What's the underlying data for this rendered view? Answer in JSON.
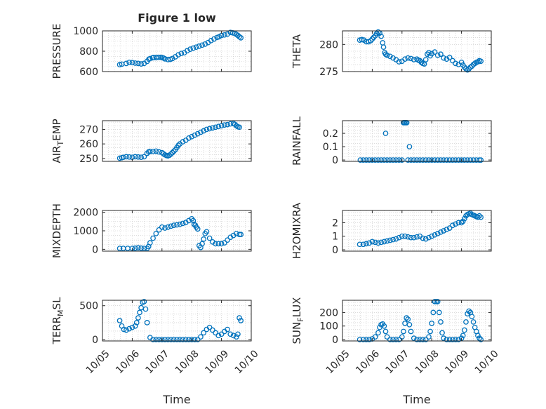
{
  "figure": {
    "title": "Figure 1 low",
    "x_label": "Time",
    "x_ticks": [
      "10/05",
      "10/06",
      "10/07",
      "10/08",
      "10/09",
      "10/10"
    ],
    "marker_color": "#0072BD",
    "axis_color": "#262626",
    "grid_color": "#c8c8c8"
  },
  "chart_data": [
    {
      "type": "scatter",
      "name": "pressure",
      "ylabel": "PRESSURE",
      "title": "Figure 1 low",
      "grid": true,
      "xlim": [
        0,
        5
      ],
      "ylim": [
        600,
        1000
      ],
      "yticks": [
        600,
        800,
        1000
      ],
      "ytick_labels": [
        "600",
        "800",
        "1000"
      ],
      "x": [
        0.58,
        0.65,
        0.8,
        0.9,
        1.0,
        1.1,
        1.2,
        1.3,
        1.4,
        1.5,
        1.56,
        1.6,
        1.68,
        1.72,
        1.8,
        1.88,
        1.95,
        2.0,
        2.05,
        2.1,
        2.2,
        2.28,
        2.35,
        2.45,
        2.55,
        2.65,
        2.75,
        2.85,
        2.95,
        3.05,
        3.15,
        3.25,
        3.35,
        3.45,
        3.55,
        3.65,
        3.75,
        3.85,
        3.92,
        4.0,
        4.1,
        4.2,
        4.3,
        4.38,
        4.45,
        4.5,
        4.55,
        4.6,
        4.65
      ],
      "y": [
        668,
        673,
        680,
        690,
        688,
        683,
        680,
        675,
        680,
        700,
        722,
        728,
        735,
        738,
        738,
        740,
        740,
        738,
        733,
        725,
        718,
        720,
        728,
        745,
        765,
        778,
        785,
        805,
        820,
        830,
        840,
        850,
        860,
        870,
        885,
        905,
        920,
        935,
        942,
        955,
        960,
        968,
        985,
        980,
        975,
        965,
        955,
        942,
        932
      ]
    },
    {
      "type": "scatter",
      "name": "theta",
      "ylabel": "THETA",
      "grid": true,
      "xlim": [
        0,
        5
      ],
      "ylim": [
        275,
        282.5
      ],
      "yticks": [
        275,
        280
      ],
      "ytick_labels": [
        "275",
        "280"
      ],
      "x": [
        0.58,
        0.65,
        0.72,
        0.8,
        0.88,
        0.95,
        1.0,
        1.05,
        1.1,
        1.15,
        1.2,
        1.25,
        1.3,
        1.35,
        1.38,
        1.42,
        1.45,
        1.5,
        1.6,
        1.7,
        1.8,
        1.9,
        2.0,
        2.1,
        2.2,
        2.3,
        2.4,
        2.5,
        2.55,
        2.6,
        2.65,
        2.7,
        2.75,
        2.8,
        2.85,
        2.9,
        2.95,
        3.0,
        3.1,
        3.2,
        3.3,
        3.4,
        3.5,
        3.6,
        3.7,
        3.8,
        3.9,
        4.0,
        4.05,
        4.1,
        4.15,
        4.2,
        4.25,
        4.3,
        4.35,
        4.4,
        4.45,
        4.5,
        4.55,
        4.6,
        4.65
      ],
      "y": [
        280.8,
        280.9,
        280.8,
        280.5,
        280.5,
        280.7,
        281.0,
        281.3,
        281.6,
        282.0,
        282.3,
        282.1,
        281.5,
        280.3,
        279.5,
        278.5,
        278.2,
        278.0,
        277.8,
        277.5,
        277.2,
        276.8,
        276.9,
        277.3,
        277.5,
        277.4,
        277.2,
        277.3,
        277.1,
        277.0,
        276.7,
        276.5,
        276.4,
        277.2,
        278.2,
        278.5,
        277.9,
        278.3,
        278.6,
        278.0,
        278.2,
        277.5,
        277.3,
        277.6,
        277.0,
        276.5,
        276.3,
        276.7,
        276.2,
        275.8,
        275.5,
        275.3,
        275.5,
        275.8,
        276.0,
        276.3,
        276.5,
        276.7,
        276.8,
        277.0,
        276.9
      ]
    },
    {
      "type": "scatter",
      "name": "air_temp",
      "ylabel": "AIR_TEMP",
      "ylabel_main": "AIR",
      "ylabel_sub": "T",
      "ylabel_rest": "EMP",
      "grid": true,
      "xlim": [
        0,
        5
      ],
      "ylim": [
        248,
        276
      ],
      "yticks": [
        250,
        260,
        270
      ],
      "ytick_labels": [
        "250",
        "260",
        "270"
      ],
      "x": [
        0.58,
        0.65,
        0.7,
        0.8,
        0.9,
        1.0,
        1.1,
        1.2,
        1.3,
        1.4,
        1.5,
        1.55,
        1.6,
        1.7,
        1.8,
        1.9,
        2.0,
        2.05,
        2.1,
        2.15,
        2.2,
        2.25,
        2.3,
        2.35,
        2.4,
        2.45,
        2.5,
        2.55,
        2.6,
        2.7,
        2.8,
        2.9,
        3.0,
        3.1,
        3.2,
        3.3,
        3.4,
        3.5,
        3.6,
        3.7,
        3.8,
        3.9,
        4.0,
        4.1,
        4.2,
        4.3,
        4.4,
        4.45,
        4.5,
        4.55,
        4.6
      ],
      "y": [
        250.2,
        250.5,
        250.8,
        251.2,
        251.0,
        250.8,
        251.2,
        251.0,
        250.8,
        251.2,
        253.5,
        254.5,
        254.8,
        254.8,
        255.0,
        254.5,
        254.0,
        253.2,
        252.5,
        252.0,
        251.8,
        252.2,
        253.0,
        254.0,
        255.0,
        256.0,
        257.5,
        259.0,
        260.0,
        261.5,
        262.5,
        264.0,
        265.0,
        266.0,
        267.0,
        268.0,
        269.0,
        270.0,
        270.5,
        271.0,
        271.5,
        272.0,
        272.5,
        273.0,
        273.3,
        273.8,
        274.0,
        273.5,
        272.5,
        271.8,
        271.5
      ]
    },
    {
      "type": "scatter",
      "name": "rainfall",
      "ylabel": "RAINFALL",
      "grid": true,
      "xlim": [
        0,
        5
      ],
      "ylim": [
        -0.01,
        0.295
      ],
      "yticks": [
        0,
        0.1,
        0.2
      ],
      "ytick_labels": [
        "0",
        "0.1",
        "0.2"
      ],
      "x": [
        0.6,
        0.7,
        0.8,
        0.9,
        1.0,
        1.1,
        1.2,
        1.3,
        1.4,
        1.45,
        1.5,
        1.6,
        1.7,
        1.8,
        1.9,
        2.0,
        2.05,
        2.08,
        2.12,
        2.16,
        2.2,
        2.25,
        2.3,
        2.4,
        2.5,
        2.6,
        2.7,
        2.8,
        2.9,
        3.0,
        3.1,
        3.2,
        3.3,
        3.4,
        3.5,
        3.6,
        3.7,
        3.8,
        3.9,
        4.0,
        4.1,
        4.2,
        4.3,
        4.4,
        4.5,
        4.6,
        4.65
      ],
      "y": [
        0,
        0,
        0,
        0,
        0,
        0,
        0,
        0,
        0,
        0.2,
        0,
        0,
        0,
        0,
        0,
        0,
        0.28,
        0.28,
        0.28,
        0.28,
        0,
        0.1,
        0,
        0,
        0,
        0,
        0,
        0,
        0,
        0,
        0,
        0,
        0,
        0,
        0,
        0,
        0,
        0,
        0,
        0,
        0,
        0,
        0,
        0,
        0,
        0,
        0
      ]
    },
    {
      "type": "scatter",
      "name": "mixdepth",
      "ylabel": "MIXDEPTH",
      "grid": true,
      "xlim": [
        0,
        5
      ],
      "ylim": [
        -100,
        2100
      ],
      "yticks": [
        0,
        1000,
        2000
      ],
      "ytick_labels": [
        "0",
        "1000",
        "2000"
      ],
      "x": [
        0.58,
        0.7,
        0.85,
        1.0,
        1.1,
        1.2,
        1.3,
        1.4,
        1.5,
        1.55,
        1.6,
        1.7,
        1.8,
        1.9,
        2.0,
        2.1,
        2.2,
        2.3,
        2.4,
        2.5,
        2.6,
        2.7,
        2.8,
        2.9,
        3.0,
        3.05,
        3.08,
        3.12,
        3.15,
        3.2,
        3.25,
        3.3,
        3.35,
        3.4,
        3.45,
        3.5,
        3.6,
        3.7,
        3.8,
        3.9,
        4.0,
        4.1,
        4.2,
        4.3,
        4.4,
        4.5,
        4.6,
        4.65
      ],
      "y": [
        50,
        50,
        50,
        50,
        60,
        80,
        60,
        50,
        50,
        150,
        350,
        600,
        850,
        1050,
        1200,
        1150,
        1200,
        1250,
        1300,
        1320,
        1350,
        1400,
        1450,
        1550,
        1650,
        1550,
        1350,
        1300,
        1200,
        1100,
        200,
        100,
        300,
        550,
        850,
        950,
        600,
        400,
        300,
        300,
        300,
        350,
        500,
        650,
        750,
        850,
        800,
        800
      ]
    },
    {
      "type": "scatter",
      "name": "h2omixra",
      "ylabel": "H2OMIXRA",
      "grid": true,
      "xlim": [
        0,
        5
      ],
      "ylim": [
        -0.1,
        2.9
      ],
      "yticks": [
        0,
        1,
        2
      ],
      "ytick_labels": [
        "0",
        "1",
        "2"
      ],
      "x": [
        0.58,
        0.7,
        0.8,
        0.9,
        1.0,
        1.1,
        1.2,
        1.3,
        1.4,
        1.5,
        1.6,
        1.7,
        1.8,
        1.9,
        2.0,
        2.1,
        2.2,
        2.3,
        2.4,
        2.5,
        2.6,
        2.7,
        2.8,
        2.9,
        3.0,
        3.1,
        3.2,
        3.3,
        3.4,
        3.5,
        3.6,
        3.7,
        3.8,
        3.9,
        4.0,
        4.05,
        4.1,
        4.15,
        4.2,
        4.25,
        4.3,
        4.35,
        4.4,
        4.45,
        4.5,
        4.55,
        4.6,
        4.65
      ],
      "y": [
        0.4,
        0.4,
        0.45,
        0.5,
        0.6,
        0.55,
        0.5,
        0.55,
        0.6,
        0.65,
        0.7,
        0.75,
        0.8,
        0.9,
        1.0,
        1.0,
        0.95,
        0.9,
        0.9,
        0.95,
        1.0,
        0.85,
        0.8,
        0.9,
        1.0,
        1.1,
        1.2,
        1.3,
        1.4,
        1.5,
        1.6,
        1.8,
        1.9,
        2.0,
        2.0,
        2.1,
        2.3,
        2.5,
        2.6,
        2.65,
        2.7,
        2.6,
        2.55,
        2.5,
        2.45,
        2.4,
        2.5,
        2.4
      ]
    },
    {
      "type": "scatter",
      "name": "terr_msl",
      "ylabel": "TERR_MSL",
      "ylabel_main": "TERR",
      "ylabel_sub": "M",
      "ylabel_rest": "SL",
      "grid": true,
      "xlim": [
        0,
        5
      ],
      "ylim": [
        -20,
        580
      ],
      "yticks": [
        0,
        500
      ],
      "ytick_labels": [
        "0",
        "500"
      ],
      "x": [
        0.58,
        0.65,
        0.72,
        0.8,
        0.9,
        1.0,
        1.1,
        1.15,
        1.2,
        1.25,
        1.3,
        1.35,
        1.4,
        1.45,
        1.5,
        1.6,
        1.7,
        1.8,
        1.9,
        2.0,
        2.1,
        2.2,
        2.3,
        2.4,
        2.5,
        2.6,
        2.7,
        2.8,
        2.9,
        3.0,
        3.1,
        3.2,
        3.3,
        3.4,
        3.5,
        3.6,
        3.7,
        3.8,
        3.9,
        4.0,
        4.1,
        4.2,
        4.3,
        4.4,
        4.5,
        4.55,
        4.6,
        4.65
      ],
      "y": [
        280,
        200,
        150,
        140,
        160,
        180,
        200,
        250,
        320,
        400,
        470,
        550,
        560,
        450,
        250,
        30,
        0,
        0,
        0,
        0,
        0,
        0,
        0,
        0,
        0,
        0,
        0,
        0,
        0,
        0,
        0,
        0,
        40,
        100,
        150,
        180,
        140,
        100,
        60,
        80,
        120,
        150,
        80,
        60,
        40,
        80,
        320,
        280
      ]
    },
    {
      "type": "scatter",
      "name": "sun_flux",
      "ylabel": "SUN_FLUX",
      "ylabel_main": "SUN",
      "ylabel_sub": "F",
      "ylabel_rest": "LUX",
      "grid": true,
      "xlim": [
        0,
        5
      ],
      "ylim": [
        -10,
        290
      ],
      "yticks": [
        0,
        100,
        200
      ],
      "ytick_labels": [
        "0",
        "100",
        "200"
      ],
      "x": [
        0.58,
        0.7,
        0.8,
        0.9,
        1.0,
        1.1,
        1.2,
        1.25,
        1.3,
        1.35,
        1.4,
        1.45,
        1.5,
        1.6,
        1.7,
        1.8,
        1.9,
        2.0,
        2.05,
        2.1,
        2.15,
        2.2,
        2.25,
        2.3,
        2.4,
        2.5,
        2.6,
        2.7,
        2.8,
        2.9,
        2.95,
        3.0,
        3.05,
        3.1,
        3.15,
        3.2,
        3.25,
        3.3,
        3.35,
        3.4,
        3.5,
        3.6,
        3.7,
        3.8,
        3.9,
        4.0,
        4.05,
        4.1,
        4.15,
        4.2,
        4.25,
        4.3,
        4.35,
        4.4,
        4.45,
        4.5,
        4.55,
        4.6,
        4.65
      ],
      "y": [
        0,
        0,
        0,
        0,
        5,
        20,
        50,
        90,
        110,
        115,
        100,
        60,
        20,
        0,
        0,
        0,
        0,
        20,
        60,
        120,
        160,
        150,
        110,
        60,
        10,
        0,
        0,
        0,
        0,
        20,
        60,
        120,
        200,
        280,
        280,
        280,
        200,
        130,
        50,
        10,
        0,
        0,
        0,
        0,
        0,
        10,
        30,
        70,
        130,
        190,
        210,
        200,
        170,
        130,
        90,
        60,
        30,
        10,
        0
      ]
    }
  ]
}
